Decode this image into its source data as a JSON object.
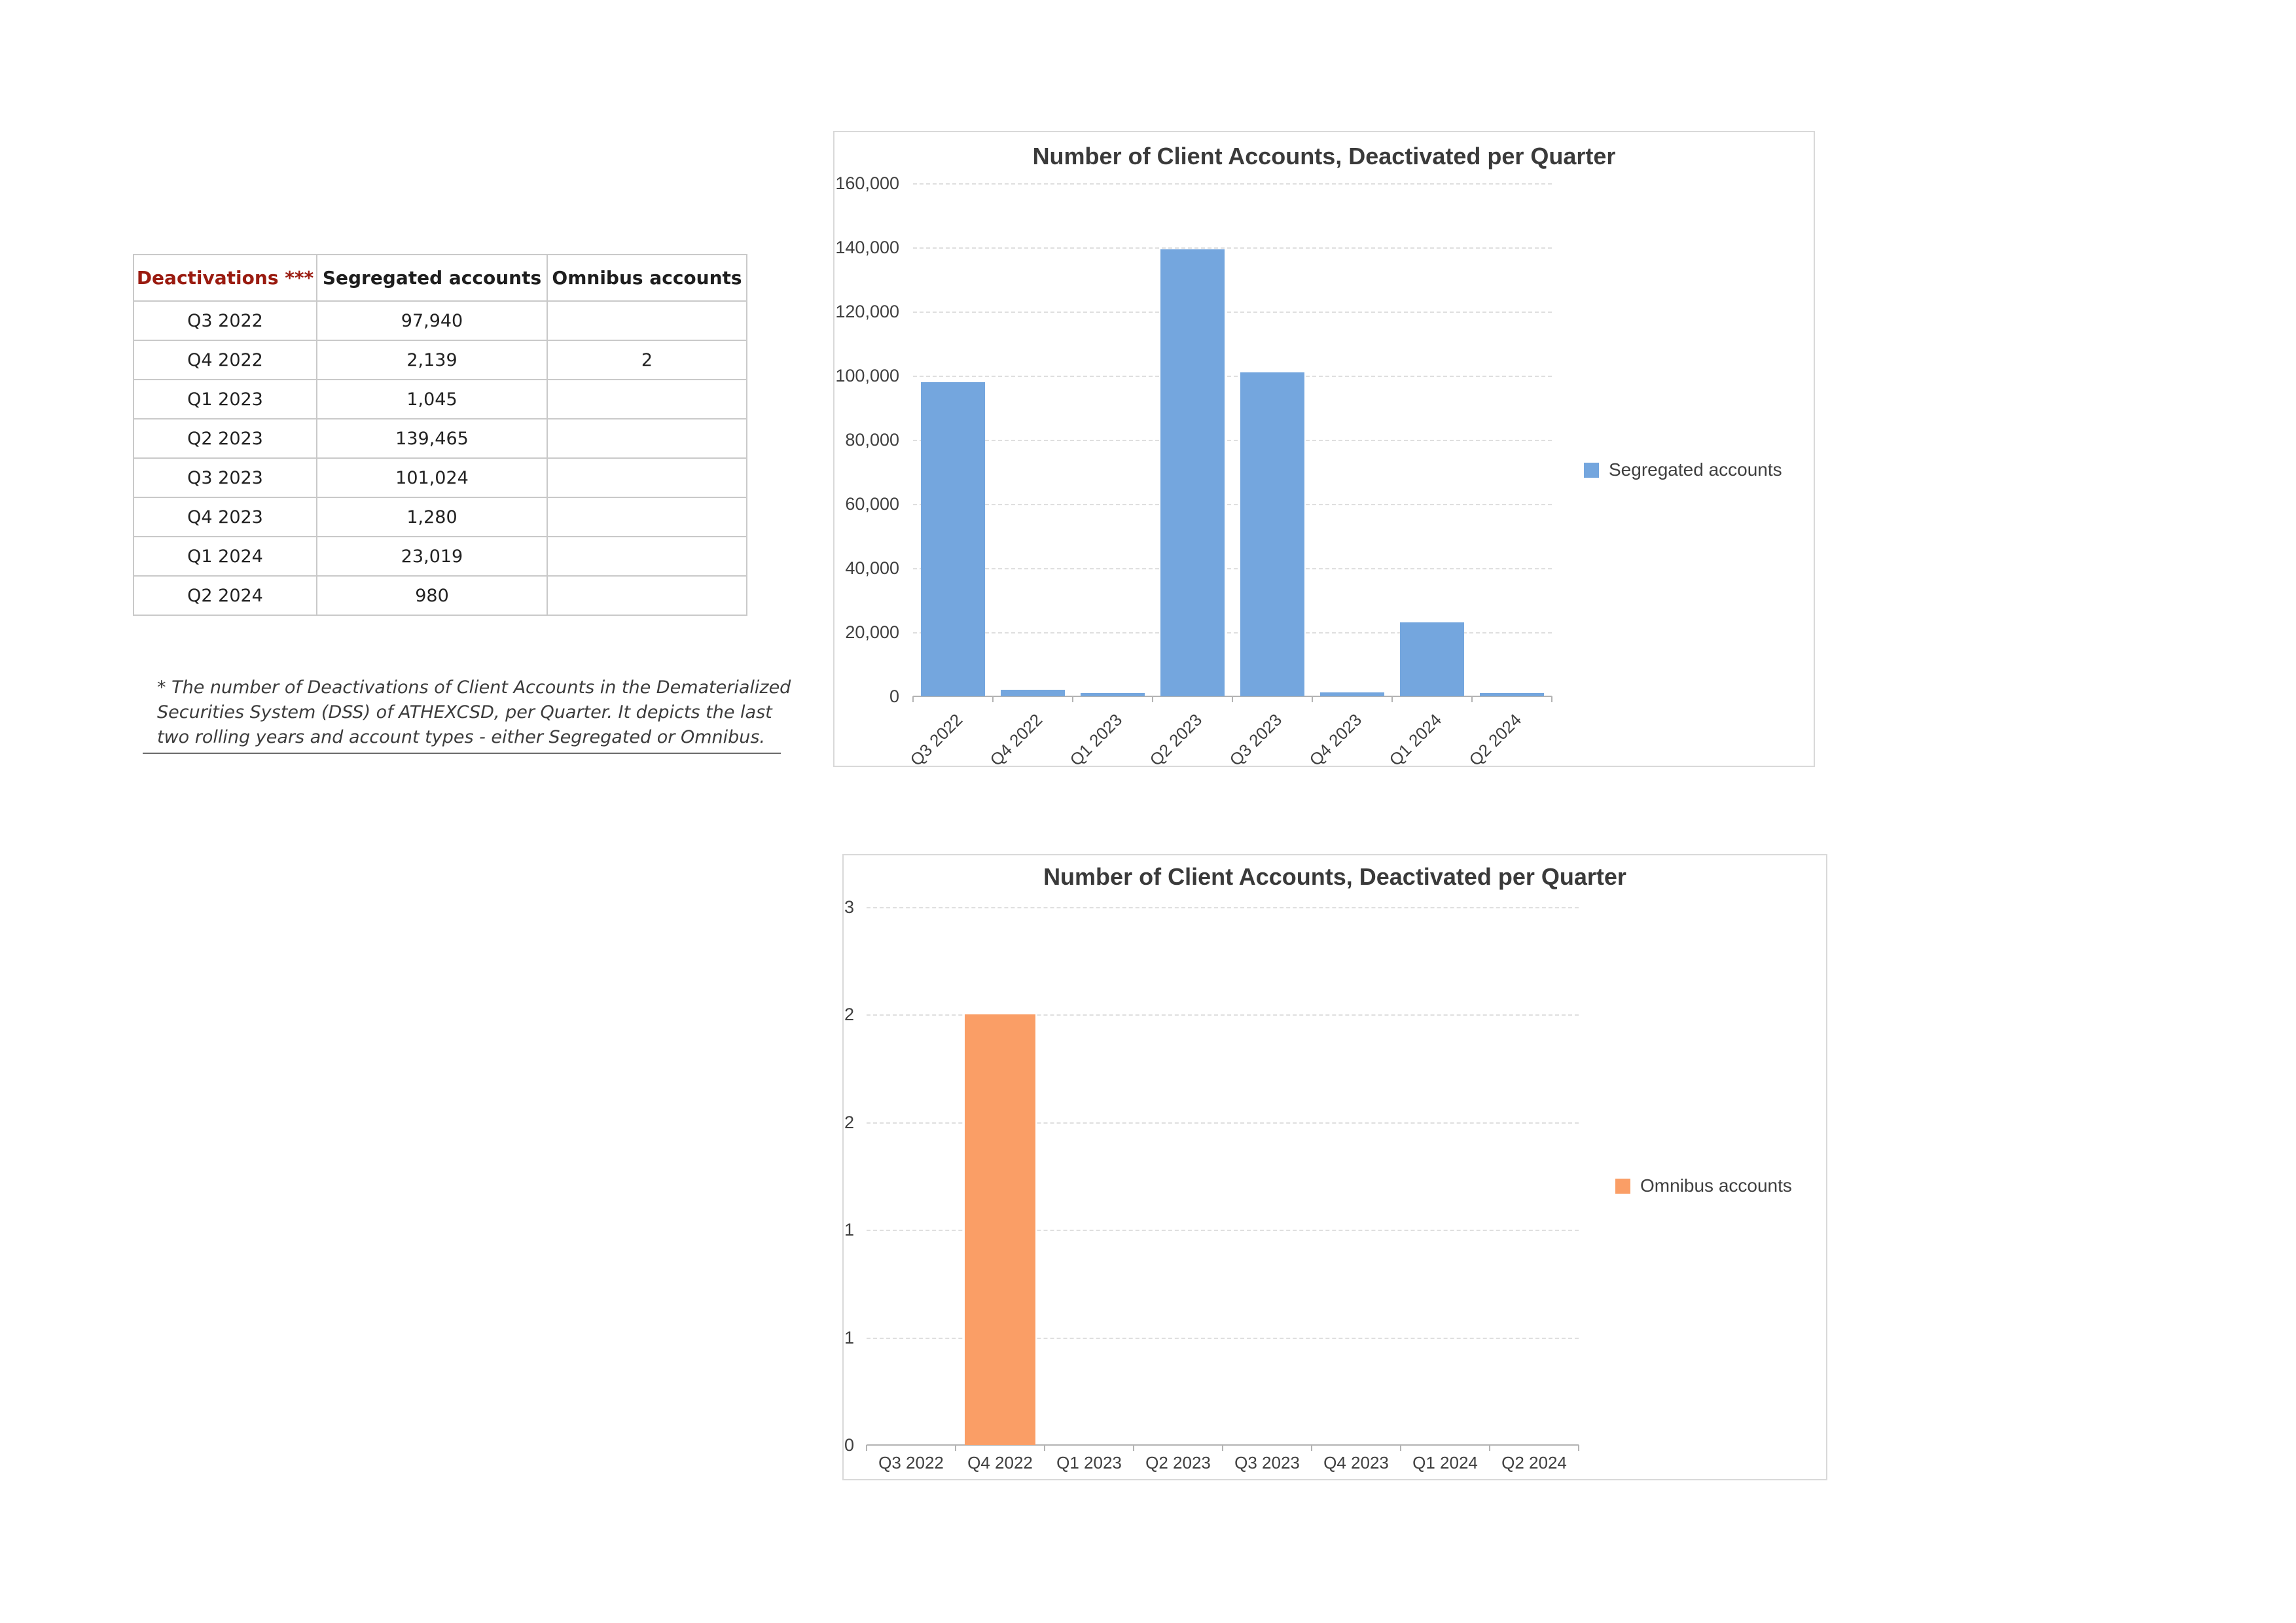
{
  "page": {
    "background": "#ffffff"
  },
  "table": {
    "headers": [
      "Deactivations ***",
      "Segregated accounts",
      "Omnibus accounts"
    ],
    "header_accent_color": "#9a1b10",
    "rows": [
      {
        "quarter": "Q3 2022",
        "segregated": "97,940",
        "omnibus": ""
      },
      {
        "quarter": "Q4 2022",
        "segregated": "2,139",
        "omnibus": "2"
      },
      {
        "quarter": "Q1 2023",
        "segregated": "1,045",
        "omnibus": ""
      },
      {
        "quarter": "Q2 2023",
        "segregated": "139,465",
        "omnibus": ""
      },
      {
        "quarter": "Q3 2023",
        "segregated": "101,024",
        "omnibus": ""
      },
      {
        "quarter": "Q4 2023",
        "segregated": "1,280",
        "omnibus": ""
      },
      {
        "quarter": "Q1 2024",
        "segregated": "23,019",
        "omnibus": ""
      },
      {
        "quarter": "Q2 2024",
        "segregated": "980",
        "omnibus": ""
      }
    ]
  },
  "footnote": {
    "lines": [
      "* The number of Deactivations of Client Accounts in the Dematerialized",
      "Securities System (DSS) of ATHEXCSD, per Quarter. It depicts the last",
      "two rolling years and account types - either Segregated or Omnibus."
    ]
  },
  "chart_data": [
    {
      "type": "bar",
      "title": "Number of Client Accounts, Deactivated per Quarter",
      "categories": [
        "Q3 2022",
        "Q4 2022",
        "Q1 2023",
        "Q2 2023",
        "Q3 2023",
        "Q4 2023",
        "Q1 2024",
        "Q2 2024"
      ],
      "series": [
        {
          "name": "Segregated accounts",
          "color": "#74a6de",
          "values": [
            97940,
            2139,
            1045,
            139465,
            101024,
            1280,
            23019,
            980
          ]
        }
      ],
      "ylim": [
        0,
        160000
      ],
      "yticks": [
        {
          "value": 160000,
          "label": "160,000"
        },
        {
          "value": 140000,
          "label": "140,000"
        },
        {
          "value": 120000,
          "label": "120,000"
        },
        {
          "value": 100000,
          "label": "100,000"
        },
        {
          "value": 80000,
          "label": "80,000"
        },
        {
          "value": 60000,
          "label": "60,000"
        },
        {
          "value": 40000,
          "label": "40,000"
        },
        {
          "value": 20000,
          "label": "20,000"
        },
        {
          "value": 0,
          "label": "0"
        }
      ],
      "grid": "dashed",
      "legend_position": "right",
      "x_label_rotation": -45
    },
    {
      "type": "bar",
      "title": "Number of Client Accounts, Deactivated per Quarter",
      "categories": [
        "Q3 2022",
        "Q4 2022",
        "Q1 2023",
        "Q2 2023",
        "Q3 2023",
        "Q4 2023",
        "Q1 2024",
        "Q2 2024"
      ],
      "series": [
        {
          "name": "Omnibus accounts",
          "color": "#fa9e66",
          "values": [
            null,
            2,
            null,
            null,
            null,
            null,
            null,
            null
          ]
        }
      ],
      "ylim": [
        0,
        2.5
      ],
      "yticks": [
        {
          "value": 2.5,
          "label": "3"
        },
        {
          "value": 2,
          "label": "2"
        },
        {
          "value": 1.5,
          "label": "2"
        },
        {
          "value": 1,
          "label": "1"
        },
        {
          "value": 0.5,
          "label": "1"
        },
        {
          "value": 0,
          "label": "0"
        }
      ],
      "grid": "dashed",
      "legend_position": "right",
      "x_label_rotation": 0
    }
  ]
}
